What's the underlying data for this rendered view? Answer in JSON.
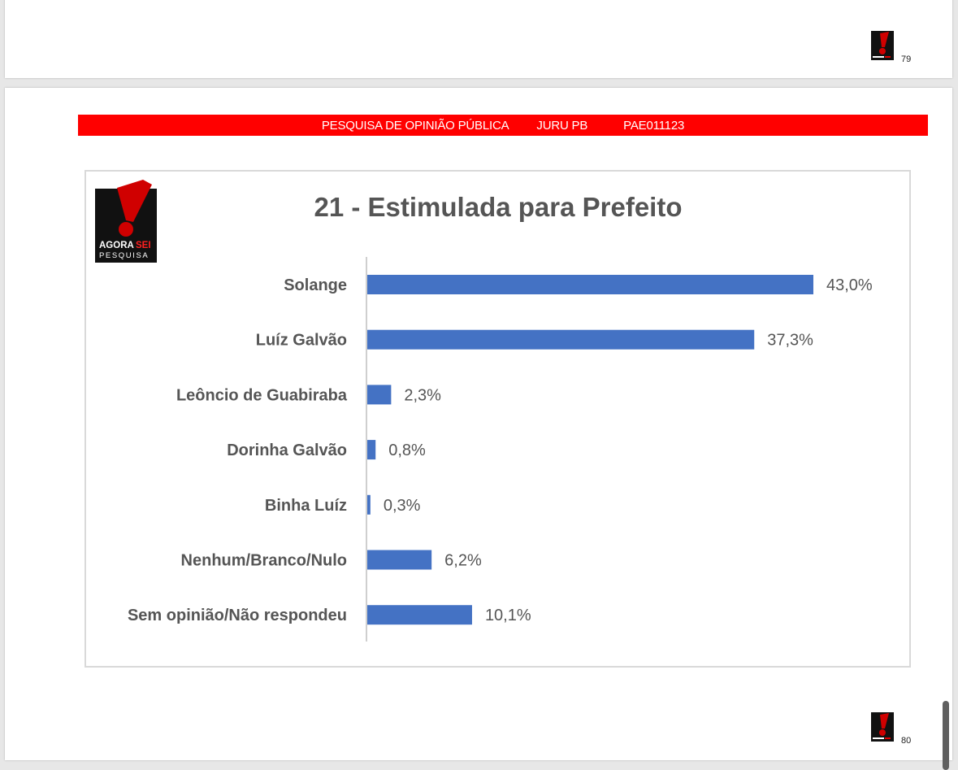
{
  "pages": {
    "previous": {
      "number": "79"
    },
    "current": {
      "number": "80"
    }
  },
  "banner": {
    "survey": "PESQUISA DE OPINIÃO PÚBLICA",
    "location": "JURU PB",
    "code": "PAE011123",
    "color": "#ff0000"
  },
  "logo": {
    "line1_white": "AGORA",
    "line1_red": "SEI",
    "line2": "PESQUISA",
    "icon": "exclamation-mark"
  },
  "chart_data": {
    "type": "bar",
    "orientation": "horizontal",
    "title": "21 - Estimulada para Prefeito",
    "categories": [
      "Solange",
      "Luíz Galvão",
      "Leôncio de Guabiraba",
      "Dorinha Galvão",
      "Binha Luíz",
      "Nenhum/Branco/Nulo",
      "Sem opinião/Não respondeu"
    ],
    "values": [
      43.0,
      37.3,
      2.3,
      0.8,
      0.3,
      6.2,
      10.1
    ],
    "labels": [
      "43,0%",
      "37,3%",
      "2,3%",
      "0,8%",
      "0,3%",
      "6,2%",
      "10,1%"
    ],
    "unit": "%",
    "xlim": [
      0,
      43.0
    ],
    "bar_color": "#4472c4",
    "grid": false,
    "legend": "none"
  }
}
